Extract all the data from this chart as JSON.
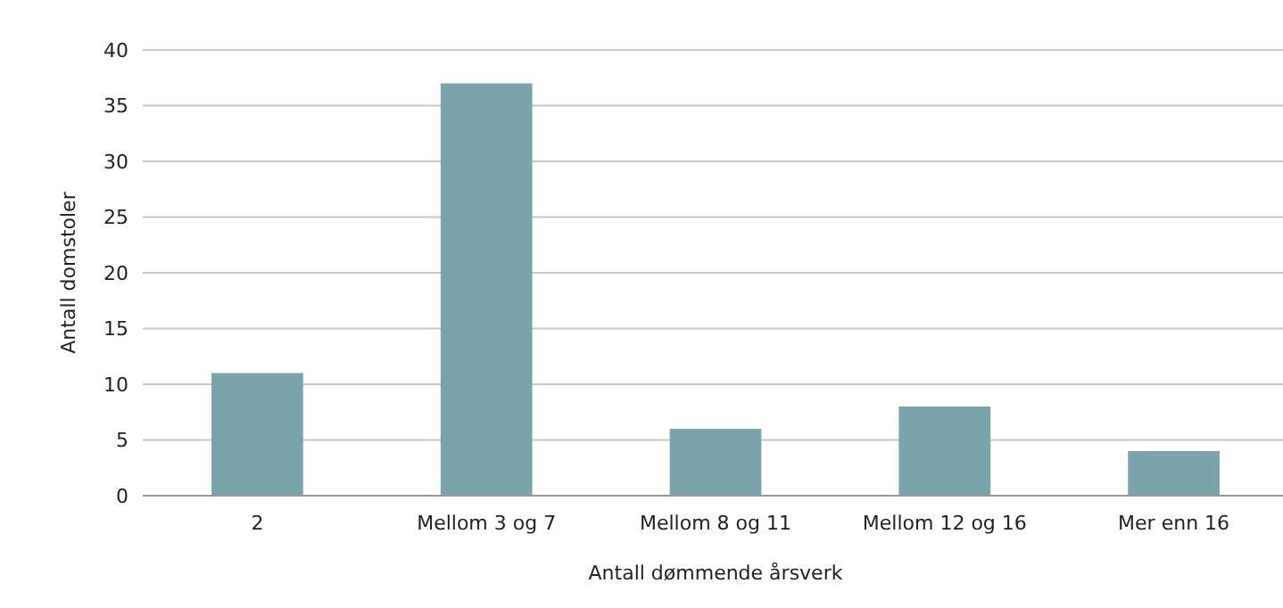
{
  "chart_data": {
    "type": "bar",
    "xlabel": "Antall dømmende årsverk",
    "ylabel": "Antall domstoler",
    "categories": [
      "2",
      "Mellom 3 og 7",
      "Mellom 8 og 11",
      "Mellom 12 og 16",
      "Mer enn 16"
    ],
    "values": [
      11,
      37,
      6,
      8,
      4
    ],
    "color": "#7ba3aa",
    "ylim": [
      0,
      40
    ],
    "yticks": [
      0,
      5,
      10,
      15,
      20,
      25,
      30,
      35,
      40
    ],
    "grid": "y"
  }
}
